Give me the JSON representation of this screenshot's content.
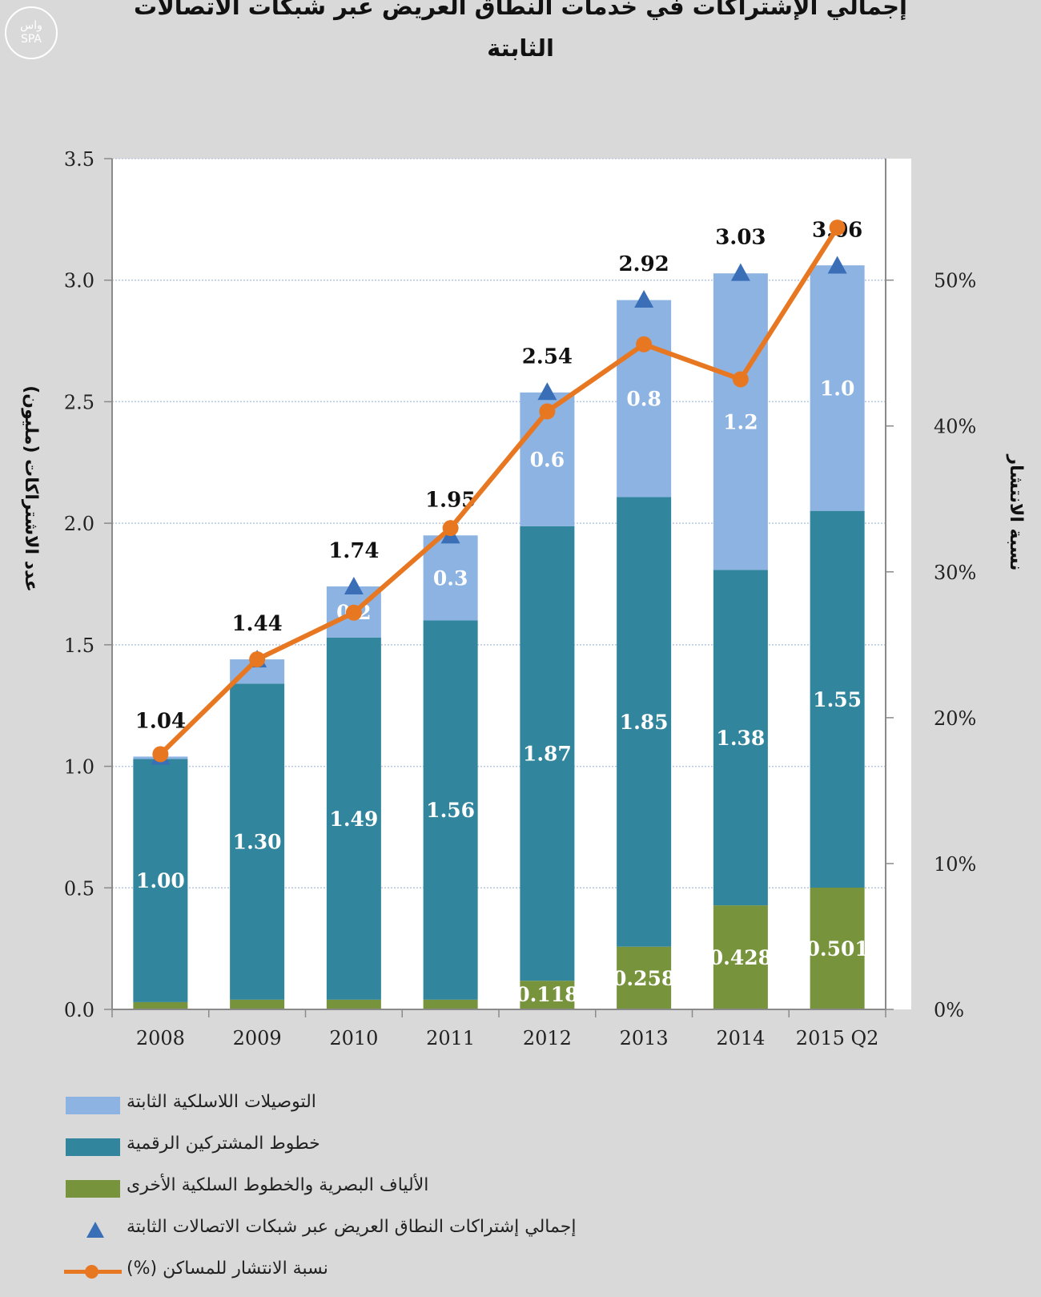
{
  "watermark": {
    "line1": "واس",
    "line2": "SPA"
  },
  "chart_data": {
    "type": "bar",
    "title_line1": "إجمالي الإشتراكات في خدمات النطاق العريض عبر شبكات الاتصالات",
    "title_line2": "الثابتة",
    "ylabel": "عدد الاشتراكات (مليون)",
    "y2label": "نسبة الانتشار",
    "ylim": [
      0,
      3.5
    ],
    "y2lim": [
      0,
      0.5833
    ],
    "y_ticks": [
      "0.0",
      "0.5",
      "1.0",
      "1.5",
      "2.0",
      "2.5",
      "3.0",
      "3.5"
    ],
    "y2_ticks": [
      "0%",
      "10%",
      "20%",
      "30%",
      "40%",
      "50%"
    ],
    "categories": [
      "2008",
      "2009",
      "2010",
      "2011",
      "2012",
      "2013",
      "2014",
      "2015 Q2"
    ],
    "stacked": true,
    "series": [
      {
        "name": "الألياف البصرية والخطوط السلكية الأخرى",
        "color": "#77933c",
        "values": [
          0.03,
          0.04,
          0.04,
          0.04,
          0.118,
          0.258,
          0.428,
          0.501
        ],
        "labels": [
          "",
          "",
          "",
          "",
          "0.118",
          "0.258",
          "0.428",
          "0.501"
        ]
      },
      {
        "name": "خطوط المشتركين الرقمية",
        "color": "#31859c",
        "values": [
          1.0,
          1.3,
          1.49,
          1.56,
          1.87,
          1.85,
          1.38,
          1.55
        ],
        "labels": [
          "1.00",
          "1.30",
          "1.49",
          "1.56",
          "1.87",
          "1.85",
          "1.38",
          "1.55"
        ]
      },
      {
        "name": "التوصيلات اللاسلكية الثابتة",
        "color": "#8db3e2",
        "values": [
          0.01,
          0.1,
          0.21,
          0.35,
          0.55,
          0.81,
          1.22,
          1.01
        ],
        "labels": [
          "",
          "",
          "0.2",
          "0.3",
          "0.6",
          "0.8",
          "1.2",
          "1.0"
        ]
      }
    ],
    "totals": {
      "name": "إجمالي إشتراكات النطاق العريض عبر شبكات الاتصالات الثابتة",
      "color": "#3a6fb8",
      "values": [
        1.04,
        1.44,
        1.74,
        1.95,
        2.54,
        2.92,
        3.03,
        3.06
      ],
      "labels": [
        "1.04",
        "1.44",
        "1.74",
        "1.95",
        "2.54",
        "2.92",
        "3.03",
        "3.06"
      ]
    },
    "line": {
      "name": "نسبة الانتشار للمساكن (%)",
      "color": "#e87722",
      "axis": "right",
      "values": [
        0.175,
        0.24,
        0.272,
        0.33,
        0.41,
        0.456,
        0.432,
        0.536
      ]
    },
    "grid": true,
    "legend_position": "bottom"
  }
}
